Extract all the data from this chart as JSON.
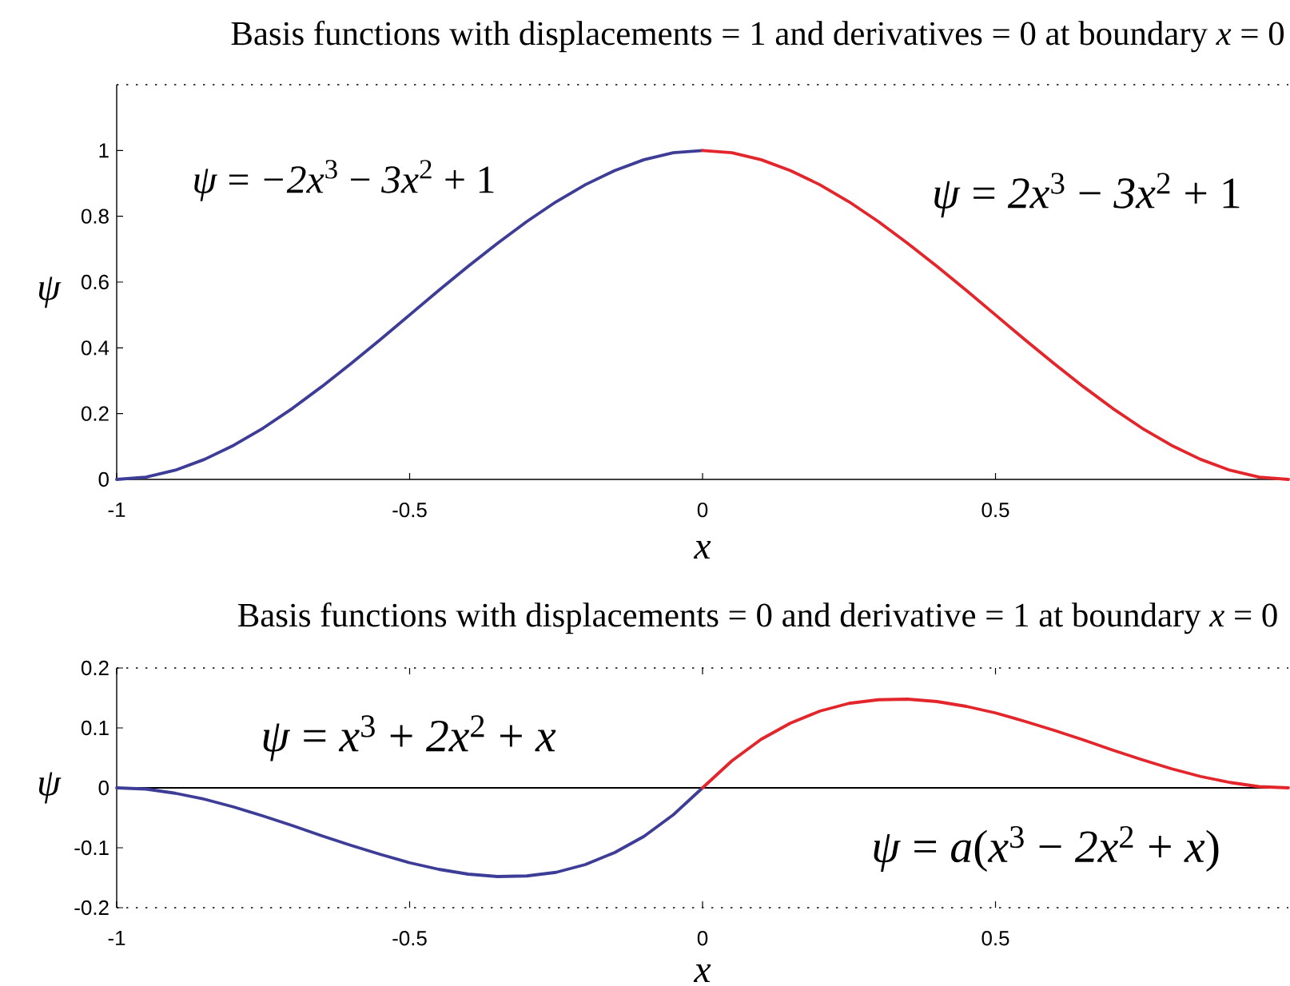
{
  "chart_data": [
    {
      "type": "line",
      "title": "Basis functions with displacements = 1 and derivatives = 0 at boundary *x* = 0",
      "xlabel": "x",
      "ylabel": "ψ",
      "xlim": [
        -1,
        1
      ],
      "ylim": [
        0,
        1.2
      ],
      "xticks": [
        -1,
        -0.5,
        0,
        0.5
      ],
      "yticks": [
        0,
        0.2,
        0.4,
        0.6,
        0.8,
        1
      ],
      "series": [
        {
          "name": "*ψ* = *−2x*$^{3}$ − *3x*$^{2}$ + 1",
          "color": "#3d3d98",
          "x": [
            -1,
            -0.95,
            -0.9,
            -0.85,
            -0.8,
            -0.75,
            -0.7,
            -0.65,
            -0.6,
            -0.55,
            -0.5,
            -0.45,
            -0.4,
            -0.35,
            -0.3,
            -0.25,
            -0.2,
            -0.15,
            -0.1,
            -0.05,
            0
          ],
          "values": [
            0,
            0.007,
            0.028,
            0.061,
            0.104,
            0.156,
            0.216,
            0.282,
            0.352,
            0.425,
            0.5,
            0.575,
            0.648,
            0.718,
            0.784,
            0.844,
            0.896,
            0.939,
            0.972,
            0.993,
            1
          ]
        },
        {
          "name": "*ψ* = *2x*$^{3}$ − *3x*$^{2}$ + 1",
          "color": "#e3262b",
          "x": [
            0,
            0.05,
            0.1,
            0.15,
            0.2,
            0.25,
            0.3,
            0.35,
            0.4,
            0.45,
            0.5,
            0.55,
            0.6,
            0.65,
            0.7,
            0.75,
            0.8,
            0.85,
            0.9,
            0.95,
            1
          ],
          "values": [
            1,
            0.993,
            0.972,
            0.939,
            0.896,
            0.844,
            0.784,
            0.718,
            0.648,
            0.575,
            0.5,
            0.425,
            0.352,
            0.282,
            0.216,
            0.156,
            0.104,
            0.061,
            0.028,
            0.007,
            0
          ]
        }
      ]
    },
    {
      "type": "line",
      "title": "Basis functions with displacements = 0 and derivative = 1 at boundary *x* = 0",
      "xlabel": "x",
      "ylabel": "ψ",
      "xlim": [
        -1,
        1
      ],
      "ylim": [
        -0.2,
        0.2
      ],
      "xticks": [
        -1,
        -0.5,
        0,
        0.5
      ],
      "yticks": [
        -0.2,
        -0.1,
        0,
        0.1,
        0.2
      ],
      "ref_lines": [
        {
          "axis": "y",
          "value": 0,
          "color": "#000000"
        }
      ],
      "series": [
        {
          "name": "*ψ* = *x*$^{3}$ + *2x*$^{2}$ + *x*",
          "color": "#3d3d98",
          "x": [
            -1,
            -0.95,
            -0.9,
            -0.85,
            -0.8,
            -0.75,
            -0.7,
            -0.65,
            -0.6,
            -0.55,
            -0.5,
            -0.45,
            -0.4,
            -0.35,
            -0.3,
            -0.25,
            -0.2,
            -0.15,
            -0.1,
            -0.05,
            0
          ],
          "values": [
            0,
            -0.002,
            -0.009,
            -0.019,
            -0.032,
            -0.047,
            -0.063,
            -0.08,
            -0.096,
            -0.111,
            -0.125,
            -0.136,
            -0.144,
            -0.148,
            -0.147,
            -0.141,
            -0.128,
            -0.108,
            -0.081,
            -0.045,
            0
          ]
        },
        {
          "name": "*ψ* = *a*(*x*$^{3}$ − *2x*$^{2}$ + *x*)",
          "color": "#e3262b",
          "x": [
            0,
            0.05,
            0.1,
            0.15,
            0.2,
            0.25,
            0.3,
            0.35,
            0.4,
            0.45,
            0.5,
            0.55,
            0.6,
            0.65,
            0.7,
            0.75,
            0.8,
            0.85,
            0.9,
            0.95,
            1
          ],
          "values": [
            0,
            0.045,
            0.081,
            0.108,
            0.128,
            0.141,
            0.147,
            0.148,
            0.144,
            0.136,
            0.125,
            0.111,
            0.096,
            0.08,
            0.063,
            0.047,
            0.032,
            0.019,
            0.009,
            0.002,
            0
          ]
        }
      ]
    }
  ]
}
